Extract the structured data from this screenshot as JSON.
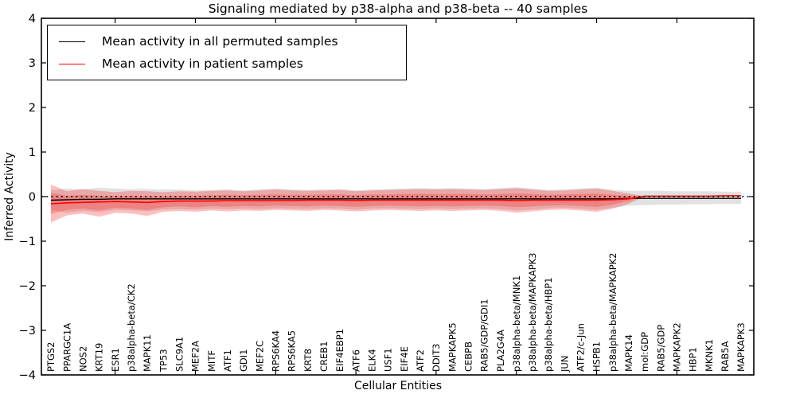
{
  "figure": {
    "background": "#ffffff",
    "frame_color": "#000000"
  },
  "chart_data": {
    "type": "line",
    "title": "Signaling mediated by p38-alpha and p38-beta -- 40 samples",
    "xlabel": "Cellular Entities",
    "ylabel": "Inferred Activity",
    "ylim": [
      -4,
      4
    ],
    "yticks": [
      4,
      3,
      2,
      1,
      0,
      -1,
      -2,
      -3,
      -4
    ],
    "xtick_mark_interval": 5,
    "grid": false,
    "legend_position": "upper left",
    "reference_line": {
      "y": 0,
      "style": "dotted",
      "color": "#000000"
    },
    "categories": [
      "PTGS2",
      "PPARGC1A",
      "NOS2",
      "KRT19",
      "ESR1",
      "p38alpha-beta/CK2",
      "MAPK11",
      "TP53",
      "SLC9A1",
      "MEF2A",
      "MITF",
      "ATF1",
      "GDI1",
      "MEF2C",
      "RPS6KA4",
      "RPS6KA5",
      "KRT8",
      "CREB1",
      "EIF4EBP1",
      "ATF6",
      "ELK4",
      "USF1",
      "EIF4E",
      "ATF2",
      "DDIT3",
      "MAPKAPK5",
      "CEBPB",
      "RAB5/GDP/GDI1",
      "PLA2G4A",
      "p38alpha-beta/MNK1",
      "p38alpha-beta/MAPKAPK3",
      "p38alpha-beta/HBP1",
      "JUN",
      "ATF2/c-Jun",
      "HSPB1",
      "p38alpha-beta/MAPKAPK2",
      "MAPK14",
      "mol:GDP",
      "RAB5/GDP",
      "MAPKAPK2",
      "HBP1",
      "MKNK1",
      "RAB5A",
      "MAPKAPK3"
    ],
    "series": [
      {
        "name": "Mean activity in all permuted samples",
        "color": "#000000",
        "values": [
          -0.08,
          -0.07,
          -0.06,
          -0.06,
          -0.05,
          -0.05,
          -0.05,
          -0.05,
          -0.05,
          -0.05,
          -0.05,
          -0.05,
          -0.05,
          -0.05,
          -0.05,
          -0.05,
          -0.05,
          -0.05,
          -0.05,
          -0.05,
          -0.05,
          -0.05,
          -0.05,
          -0.05,
          -0.05,
          -0.05,
          -0.05,
          -0.05,
          -0.05,
          -0.05,
          -0.05,
          -0.05,
          -0.05,
          -0.05,
          -0.05,
          -0.05,
          -0.04,
          -0.04,
          -0.04,
          -0.04,
          -0.04,
          -0.04,
          -0.04,
          -0.04
        ]
      },
      {
        "name": "Mean activity in patient samples",
        "color": "#ff0000",
        "values": [
          -0.16,
          -0.14,
          -0.13,
          -0.12,
          -0.11,
          -0.12,
          -0.13,
          -0.11,
          -0.1,
          -0.1,
          -0.1,
          -0.09,
          -0.09,
          -0.09,
          -0.09,
          -0.09,
          -0.08,
          -0.08,
          -0.08,
          -0.09,
          -0.08,
          -0.08,
          -0.08,
          -0.08,
          -0.08,
          -0.08,
          -0.08,
          -0.08,
          -0.08,
          -0.09,
          -0.08,
          -0.08,
          -0.08,
          -0.08,
          -0.08,
          -0.07,
          -0.05,
          0.01,
          0.01,
          0.01,
          0.01,
          0.01,
          0.02,
          0.02
        ]
      }
    ],
    "bands": [
      {
        "name": "permuted-samples-range",
        "color": "rgba(130,130,130,0.24)",
        "upper": [
          0.14,
          0.18,
          0.16,
          0.2,
          0.18,
          0.17,
          0.17,
          0.16,
          0.16,
          0.14,
          0.15,
          0.16,
          0.14,
          0.16,
          0.18,
          0.16,
          0.15,
          0.16,
          0.17,
          0.14,
          0.16,
          0.17,
          0.18,
          0.19,
          0.18,
          0.19,
          0.18,
          0.17,
          0.19,
          0.21,
          0.18,
          0.15,
          0.16,
          0.18,
          0.2,
          0.15,
          0.13,
          0.13,
          0.13,
          0.12,
          0.12,
          0.12,
          0.11,
          0.11
        ],
        "lower": [
          -0.3,
          -0.36,
          -0.32,
          -0.35,
          -0.3,
          -0.31,
          -0.33,
          -0.29,
          -0.28,
          -0.29,
          -0.27,
          -0.28,
          -0.27,
          -0.28,
          -0.26,
          -0.27,
          -0.28,
          -0.26,
          -0.27,
          -0.29,
          -0.27,
          -0.26,
          -0.27,
          -0.28,
          -0.27,
          -0.28,
          -0.27,
          -0.26,
          -0.28,
          -0.31,
          -0.29,
          -0.26,
          -0.25,
          -0.27,
          -0.3,
          -0.25,
          -0.2,
          -0.19,
          -0.18,
          -0.18,
          -0.17,
          -0.17,
          -0.16,
          -0.16
        ]
      },
      {
        "name": "patient-samples-range-outer",
        "color": "rgba(255,0,0,0.25)",
        "upper": [
          0.27,
          0.12,
          0.17,
          0.13,
          0.1,
          0.13,
          0.12,
          0.1,
          0.12,
          0.11,
          0.13,
          0.14,
          0.12,
          0.14,
          0.16,
          0.14,
          0.13,
          0.14,
          0.15,
          0.12,
          0.14,
          0.15,
          0.16,
          0.17,
          0.16,
          0.17,
          0.16,
          0.15,
          0.17,
          0.19,
          0.16,
          0.13,
          0.14,
          0.16,
          0.18,
          0.13,
          0.07,
          0.01
        ],
        "lower": [
          -0.58,
          -0.42,
          -0.38,
          -0.45,
          -0.36,
          -0.38,
          -0.43,
          -0.34,
          -0.32,
          -0.34,
          -0.31,
          -0.33,
          -0.31,
          -0.32,
          -0.3,
          -0.31,
          -0.32,
          -0.3,
          -0.31,
          -0.33,
          -0.31,
          -0.3,
          -0.31,
          -0.32,
          -0.31,
          -0.32,
          -0.31,
          -0.3,
          -0.32,
          -0.36,
          -0.33,
          -0.3,
          -0.29,
          -0.31,
          -0.34,
          -0.27,
          -0.16,
          0.01
        ]
      },
      {
        "name": "patient-samples-range-inner",
        "color": "rgba(255,0,0,0.22)",
        "upper": [
          0.08,
          0.02,
          0.04,
          0.02,
          0.01,
          0.02,
          0.01,
          0.01,
          0.02,
          0.02,
          0.03,
          0.04,
          0.03,
          0.04,
          0.05,
          0.04,
          0.04,
          0.05,
          0.05,
          0.03,
          0.05,
          0.05,
          0.06,
          0.06,
          0.06,
          0.06,
          0.06,
          0.05,
          0.06,
          0.07,
          0.06,
          0.04,
          0.05,
          0.06,
          0.07,
          0.04,
          0.02,
          0.01
        ],
        "lower": [
          -0.39,
          -0.3,
          -0.27,
          -0.31,
          -0.25,
          -0.27,
          -0.3,
          -0.24,
          -0.22,
          -0.24,
          -0.21,
          -0.23,
          -0.21,
          -0.22,
          -0.2,
          -0.21,
          -0.22,
          -0.2,
          -0.21,
          -0.23,
          -0.21,
          -0.2,
          -0.21,
          -0.22,
          -0.21,
          -0.22,
          -0.21,
          -0.2,
          -0.21,
          -0.24,
          -0.22,
          -0.2,
          -0.19,
          -0.21,
          -0.23,
          -0.18,
          -0.1,
          0.01
        ]
      }
    ]
  }
}
